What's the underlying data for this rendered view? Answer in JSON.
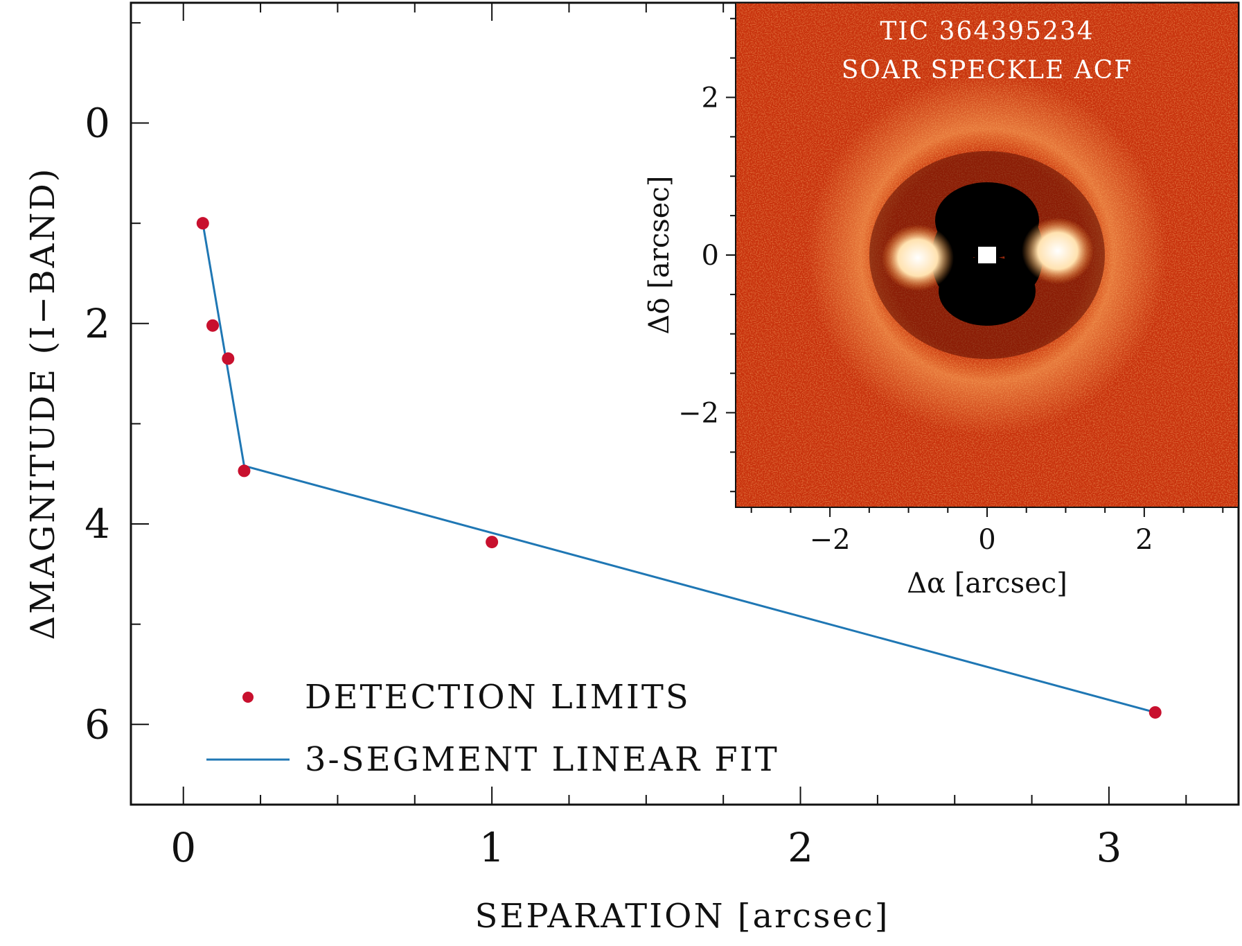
{
  "chart_data": {
    "main": {
      "type": "line",
      "xlabel": "SEPARATION [arcsec]",
      "ylabel": "ΔMAGNITUDE (I−BAND)",
      "xlim": [
        -0.17,
        3.42
      ],
      "ylim": [
        6.8,
        -1.2
      ],
      "y_inverted": true,
      "x_ticks": [
        0,
        1,
        2,
        3
      ],
      "y_ticks": [
        0,
        2,
        4,
        6
      ],
      "legend_position": "lower-left",
      "grid": false,
      "series": [
        {
          "name": "DETECTION LIMITS",
          "type": "scatter",
          "color": "#c8102e",
          "x": [
            0.063,
            0.095,
            0.145,
            0.197,
            1.0,
            3.15
          ],
          "y": [
            1.0,
            2.02,
            2.35,
            3.47,
            4.18,
            5.88
          ]
        },
        {
          "name": "3-SEGMENT LINEAR FIT",
          "type": "line",
          "color": "#1f77b4",
          "x": [
            0.063,
            0.197,
            3.15
          ],
          "y": [
            1.0,
            3.42,
            5.88
          ]
        }
      ]
    },
    "inset": {
      "type": "heatmap",
      "title_line1": "TIC 364395234",
      "title_line2": "SOAR SPECKLE ACF",
      "xlabel": "Δα [arcsec]",
      "ylabel": "Δδ [arcsec]",
      "xlim": [
        -3.2,
        3.2
      ],
      "ylim": [
        -3.2,
        3.2
      ],
      "x_ticks": [
        -2,
        0,
        2
      ],
      "y_ticks": [
        -2,
        0,
        2
      ],
      "colormap": "hot",
      "features": "central bright peak, dark ring, two bright side lobes near Δα = ±1"
    }
  },
  "colors": {
    "scatter": "#c8102e",
    "fit_line": "#1f77b4",
    "inset_background": "#c7300b"
  }
}
